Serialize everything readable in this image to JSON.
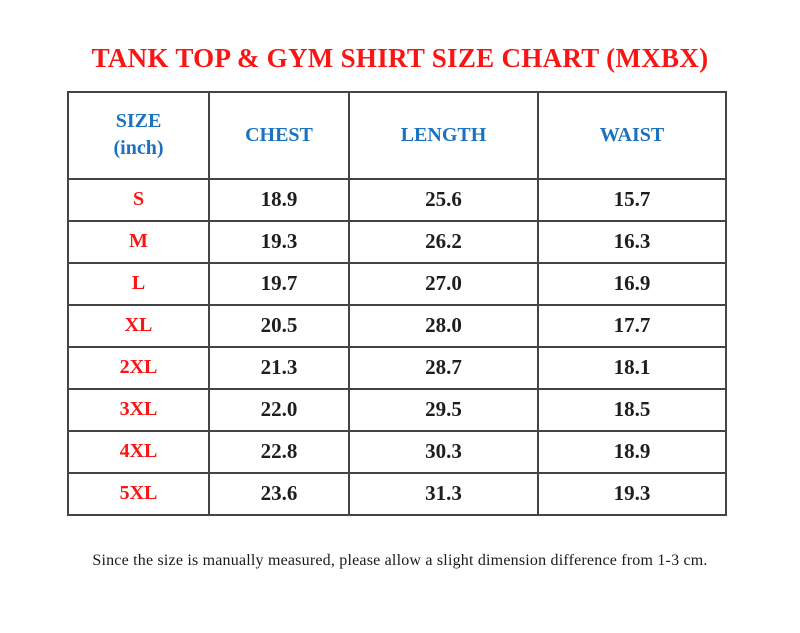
{
  "title": "TANK TOP & GYM SHIRT SIZE CHART (MXBX)",
  "colors": {
    "title_red": "#fa1414",
    "size_red": "#fa1414",
    "header_blue": "#1b72c0",
    "value_dark": "#1e1e1e",
    "border_gray": "#444444"
  },
  "table": {
    "header": {
      "size_line1": "SIZE",
      "size_line2": "(inch)",
      "chest": "CHEST",
      "length": "LENGTH",
      "waist": "WAIST"
    },
    "rows": [
      {
        "size": "S",
        "chest": "18.9",
        "length": "25.6",
        "waist": "15.7"
      },
      {
        "size": "M",
        "chest": "19.3",
        "length": "26.2",
        "waist": "16.3"
      },
      {
        "size": "L",
        "chest": "19.7",
        "length": "27.0",
        "waist": "16.9"
      },
      {
        "size": "XL",
        "chest": "20.5",
        "length": "28.0",
        "waist": "17.7"
      },
      {
        "size": "2XL",
        "chest": "21.3",
        "length": "28.7",
        "waist": "18.1"
      },
      {
        "size": "3XL",
        "chest": "22.0",
        "length": "29.5",
        "waist": "18.5"
      },
      {
        "size": "4XL",
        "chest": "22.8",
        "length": "30.3",
        "waist": "18.9"
      },
      {
        "size": "5XL",
        "chest": "23.6",
        "length": "31.3",
        "waist": "19.3"
      }
    ]
  },
  "note": "Since the size is manually measured, please allow a slight dimension difference from 1-3 cm.",
  "chart_data": {
    "type": "table",
    "title": "TANK TOP & GYM SHIRT SIZE CHART (MXBX)",
    "unit": "inch",
    "columns": [
      "SIZE (inch)",
      "CHEST",
      "LENGTH",
      "WAIST"
    ],
    "rows": [
      [
        "S",
        18.9,
        25.6,
        15.7
      ],
      [
        "M",
        19.3,
        26.2,
        16.3
      ],
      [
        "L",
        19.7,
        27.0,
        16.9
      ],
      [
        "XL",
        20.5,
        28.0,
        17.7
      ],
      [
        "2XL",
        21.3,
        28.7,
        18.1
      ],
      [
        "3XL",
        22.0,
        29.5,
        18.5
      ],
      [
        "4XL",
        22.8,
        30.3,
        18.9
      ],
      [
        "5XL",
        23.6,
        31.3,
        19.3
      ]
    ],
    "footnote": "Since the size is manually measured, please allow a slight dimension difference from 1-3 cm."
  }
}
